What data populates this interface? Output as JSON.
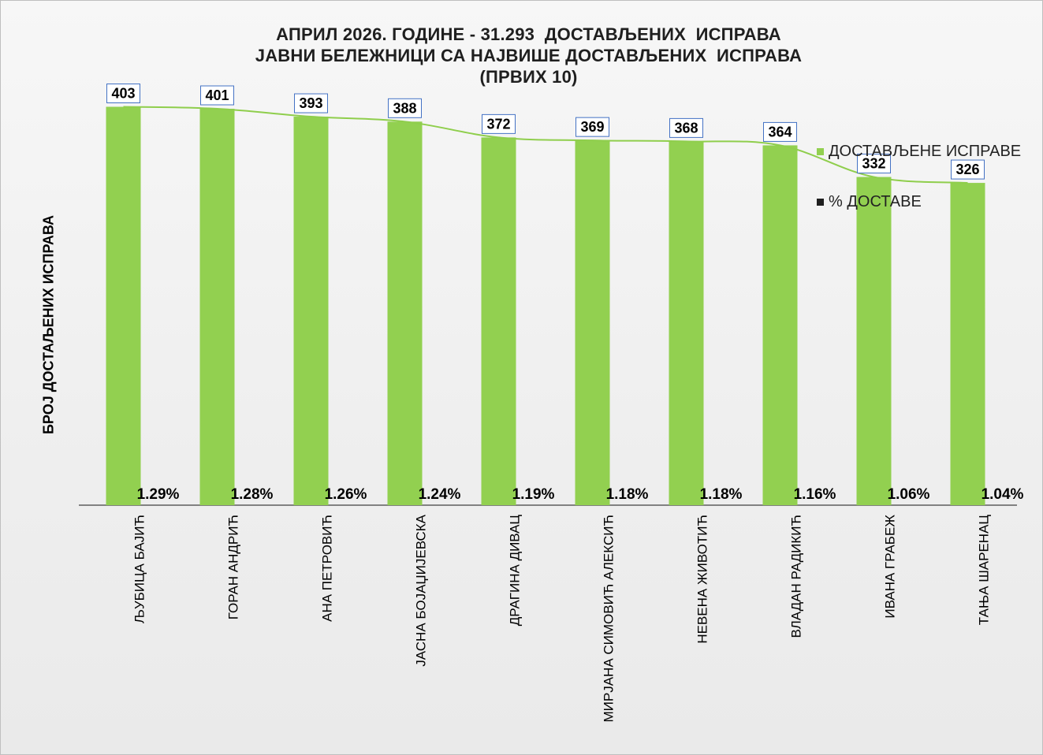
{
  "colors": {
    "bar": "#92d050",
    "line": "#8fce4c",
    "axis": "#404040",
    "label_border": "#4472c4",
    "percent_swatch": "#1f1f1f"
  },
  "chart_data": {
    "type": "bar",
    "title_lines": [
      "АПРИЛ 2026. ГОДИНЕ - 31.293  ДОСТАВЉЕНИХ  ИСПРАВА",
      "ЈАВНИ БЕЛЕЖНИЦИ СА НАЈВИШЕ ДОСТАВЉЕНИХ  ИСПРАВА",
      "(ПРВИХ 10)"
    ],
    "ylabel": "БРОЈ ДОСТАЉЕНИХ ИСПРАВА",
    "xlabel": "",
    "ylim": [
      0,
      460
    ],
    "grid": false,
    "legend_position": "right",
    "categories": [
      "ЉУБИЦА БАЈИЋ",
      "ГОРАН АНДРИЋ",
      "АНА ПЕТРОВИЋ",
      "ЈАСНА БОЈАЏИЈЕВСКА",
      "ДРАГИНА ДИВАЦ",
      "МИРЈАНА СИМОВИЋ АЛЕКСИЋ",
      "НЕВЕНА ЖИВОТИЋ",
      "ВЛАДАН РАДИКИЋ",
      "ИВАНА ГРАБЕЖ",
      "ТАЊА ШАРЕНАЦ"
    ],
    "series": [
      {
        "name": "ДОСТАВЉЕНЕ  ИСПРАВЕ",
        "values": [
          403,
          401,
          393,
          388,
          372,
          369,
          368,
          364,
          332,
          326
        ]
      },
      {
        "name": "% ДОСТАВЕ",
        "values": [
          1.29,
          1.28,
          1.26,
          1.24,
          1.19,
          1.18,
          1.18,
          1.16,
          1.06,
          1.04
        ],
        "labels": [
          "1.29%",
          "1.28%",
          "1.26%",
          "1.24%",
          "1.19%",
          "1.18%",
          "1.18%",
          "1.16%",
          "1.06%",
          "1.04%"
        ]
      }
    ]
  }
}
